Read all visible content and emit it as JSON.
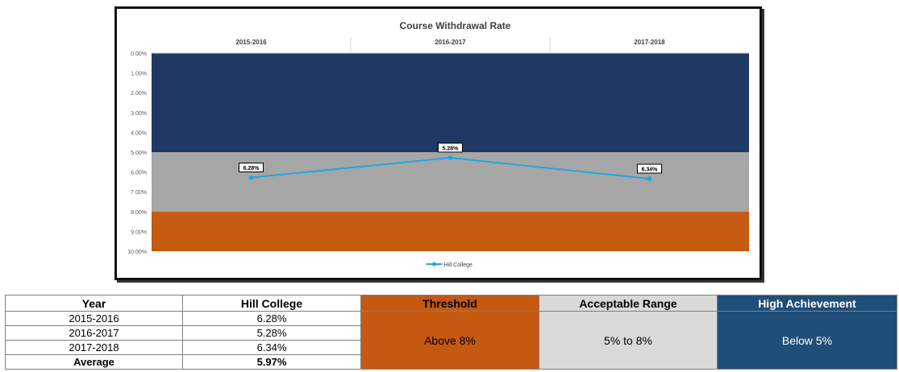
{
  "chart_data": {
    "type": "line",
    "title": "Course Withdrawal Rate",
    "categories": [
      "2015-2016",
      "2016-2017",
      "2017-2018"
    ],
    "series": [
      {
        "name": "Hill College",
        "values": [
          6.28,
          5.28,
          6.34
        ],
        "labels": [
          "6.28%",
          "5.28%",
          "6.34%"
        ],
        "color": "#1fa7e0"
      }
    ],
    "y_axis": {
      "reversed": true,
      "min": 0,
      "max": 10,
      "ticks": [
        "0.00%",
        "1.00%",
        "2.00%",
        "3.00%",
        "4.00%",
        "5.00%",
        "6.00%",
        "7.00%",
        "8.00%",
        "9.00%",
        "10.00%"
      ]
    },
    "x_axis_position": "top",
    "background_bands": [
      {
        "from": 0,
        "to": 5,
        "color": "#203864"
      },
      {
        "from": 5,
        "to": 8,
        "color": "#a6a6a6"
      },
      {
        "from": 8,
        "to": 10,
        "color": "#c55a11"
      }
    ],
    "legend_position": "bottom-center"
  },
  "table": {
    "headers": [
      "Year",
      "Hill College",
      "Threshold",
      "Acceptable Range",
      "High Achievement"
    ],
    "rows": [
      {
        "year": "2015-2016",
        "value": "6.28%"
      },
      {
        "year": "2016-2017",
        "value": "5.28%"
      },
      {
        "year": "2017-2018",
        "value": "6.34%"
      }
    ],
    "average": {
      "label": "Average",
      "value": "5.97%"
    },
    "threshold_text": "Above 8%",
    "acceptable_text": "5% to 8%",
    "high_text": "Below 5%"
  }
}
